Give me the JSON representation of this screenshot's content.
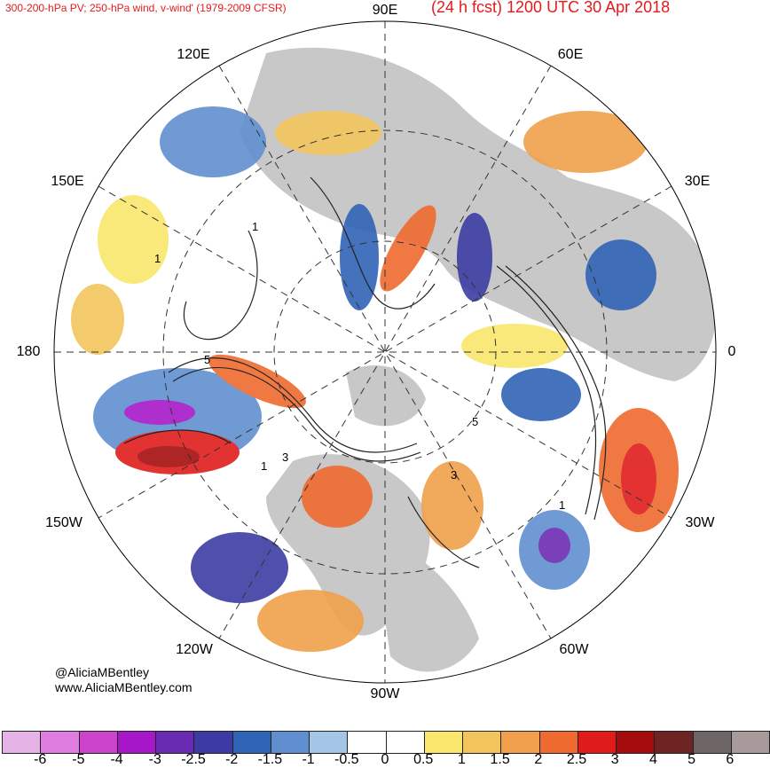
{
  "header": {
    "title_left": "300-200-hPa PV; 250-hPa wind, v-wind' (1979-2009 CFSR)",
    "title_right": "(24 h fcst) 1200 UTC 30 Apr 2018"
  },
  "map": {
    "projection": "north-polar-stereographic",
    "longitude_labels": [
      {
        "id": "90e",
        "text": "90E"
      },
      {
        "id": "60e",
        "text": "60E"
      },
      {
        "id": "30e",
        "text": "30E"
      },
      {
        "id": "0",
        "text": "0"
      },
      {
        "id": "30w",
        "text": "30W"
      },
      {
        "id": "60w",
        "text": "60W"
      },
      {
        "id": "90w",
        "text": "90W"
      },
      {
        "id": "120w",
        "text": "120W"
      },
      {
        "id": "150w",
        "text": "150W"
      },
      {
        "id": "180",
        "text": "180"
      },
      {
        "id": "150e",
        "text": "150E"
      },
      {
        "id": "120e",
        "text": "120E"
      }
    ],
    "contour_labels": [
      "1",
      "3",
      "5",
      "1",
      "3",
      "5",
      "1",
      "1"
    ],
    "land_color": "#c8c8c8",
    "ocean_color": "#ffffff"
  },
  "credits": {
    "line1": "@AliciaMBentley",
    "line2": "www.AliciaMBentley.com"
  },
  "colorbar": {
    "ticks": [
      "-6",
      "-5",
      "-4",
      "-3",
      "-2.5",
      "-2",
      "-1.5",
      "-1",
      "-0.5",
      "0",
      "0.5",
      "1",
      "1.5",
      "2",
      "2.5",
      "3",
      "4",
      "5",
      "6"
    ],
    "colors": [
      "#e6b3e6",
      "#e07de0",
      "#cc44cc",
      "#a617c9",
      "#6a2bb3",
      "#3b3ba3",
      "#2f63b5",
      "#5f8fcf",
      "#a3c6e6",
      "#ffffff",
      "#ffffff",
      "#f9e66b",
      "#f2c45c",
      "#f0a04a",
      "#ef6a2e",
      "#e01b1b",
      "#a50d0d",
      "#6f2424",
      "#6e6666",
      "#a89a9a"
    ]
  }
}
